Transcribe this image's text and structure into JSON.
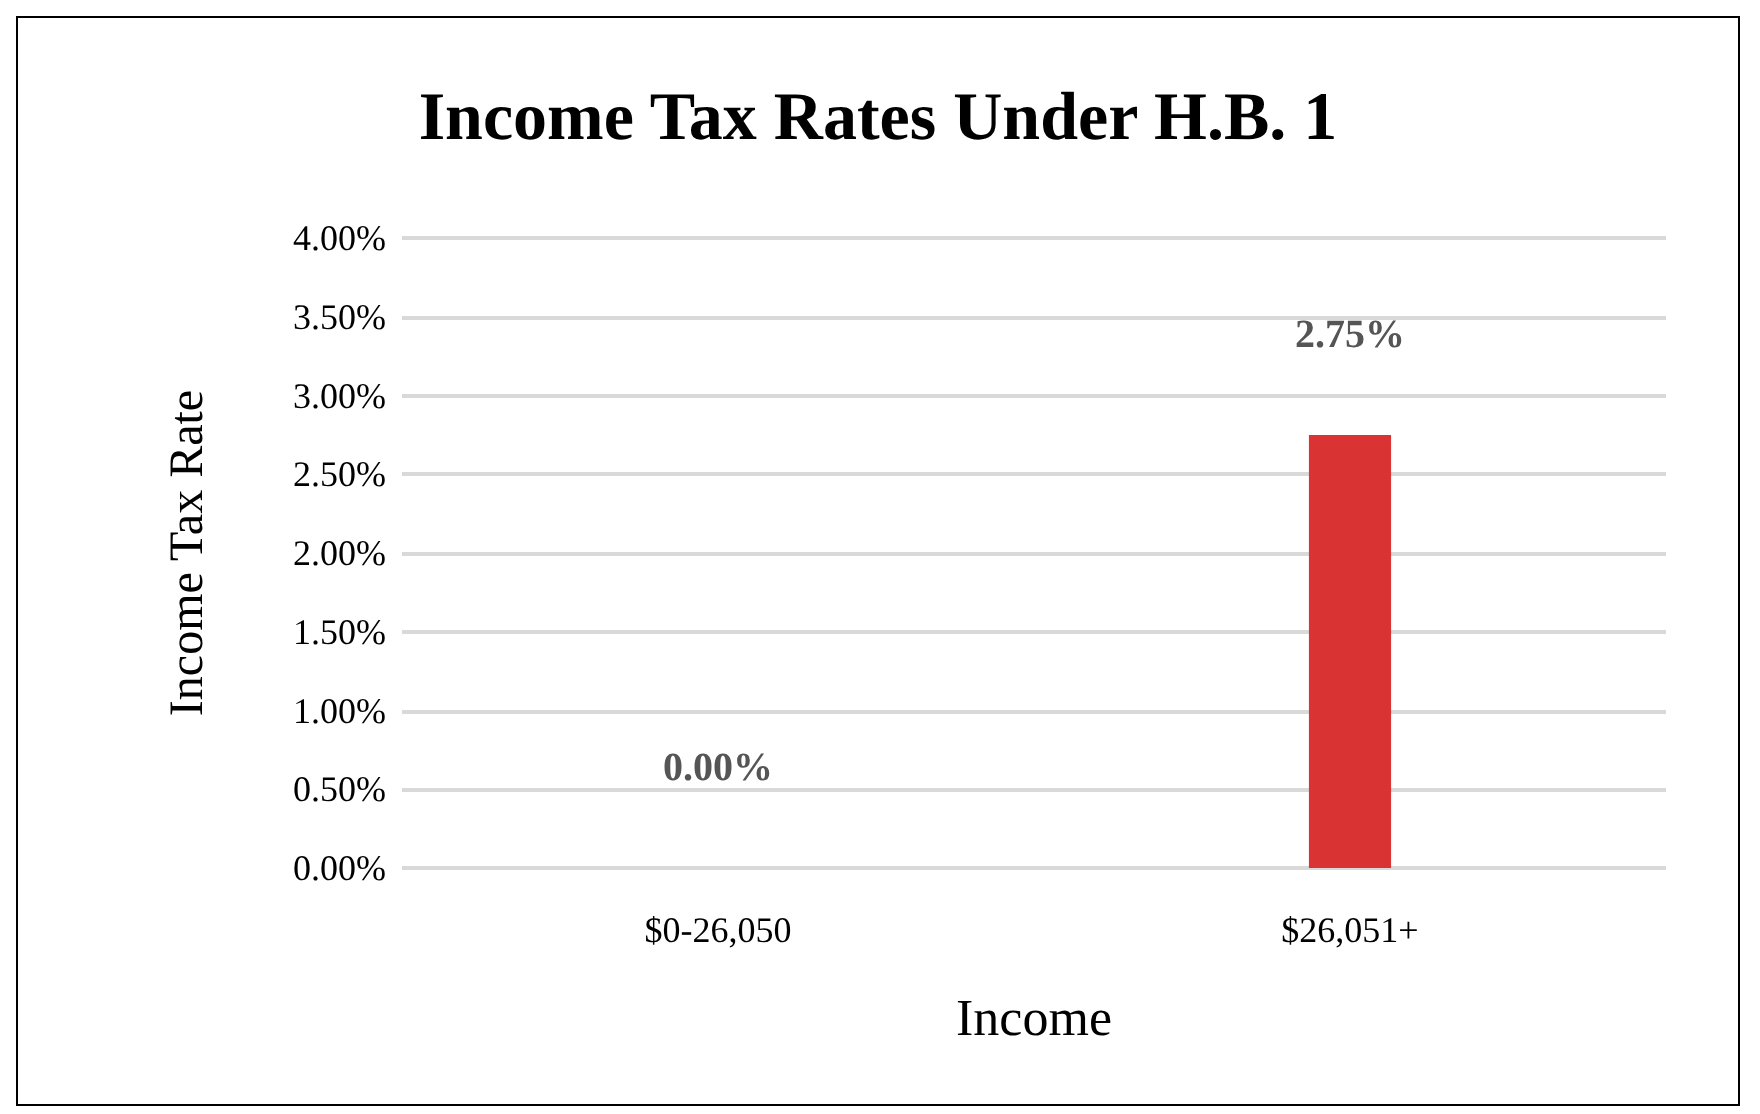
{
  "chart_data": {
    "type": "bar",
    "title": "Income Tax Rates Under H.B. 1",
    "xlabel": "Income",
    "ylabel": "Income Tax Rate",
    "categories": [
      "$0-26,050",
      "$26,051+"
    ],
    "values": [
      0,
      2.75
    ],
    "color": "#d93333",
    "value_labels": [
      "0.00%",
      "2.75%"
    ],
    "ylim": [
      0,
      4
    ],
    "yticks": [
      {
        "value": 0,
        "label": "0.00%"
      },
      {
        "value": 0.5,
        "label": "0.50%"
      },
      {
        "value": 1,
        "label": "1.00%"
      },
      {
        "value": 1.5,
        "label": "1.50%"
      },
      {
        "value": 2,
        "label": "2.00%"
      },
      {
        "value": 2.5,
        "label": "2.50%"
      },
      {
        "value": 3,
        "label": "3.00%"
      },
      {
        "value": 3.5,
        "label": "3.50%"
      },
      {
        "value": 4,
        "label": "4.00%"
      }
    ],
    "grid": "y"
  }
}
